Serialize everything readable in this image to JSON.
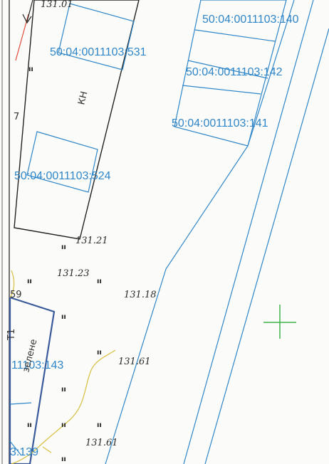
{
  "map": {
    "parcel_labels": {
      "p531": "50:04:0011103:531",
      "p524": "50:04:0011103:524",
      "p140": "50:04:0011103:140",
      "p142": "50:04:0011103:142",
      "p141": "50:04:0011103:141",
      "p143": "11103:143",
      "p139": "3:139"
    },
    "elevations": {
      "top": "131.01",
      "e1": "131.21",
      "e2": "131.23",
      "e3": "131.18",
      "e4": "131.61",
      "e5": "131.61"
    },
    "building_label": "КН",
    "misc": {
      "left_seven": "7",
      "left_nine": "59",
      "rotated_text": "Т1",
      "rotated_text2": "зелене"
    },
    "grass_mark": "ıı",
    "colors": {
      "parcel_line": "#2f86c8",
      "building_line": "#222222",
      "road_line": "#d9c24a",
      "cross": "#3cb54a",
      "red_line": "#e04a3a"
    }
  }
}
